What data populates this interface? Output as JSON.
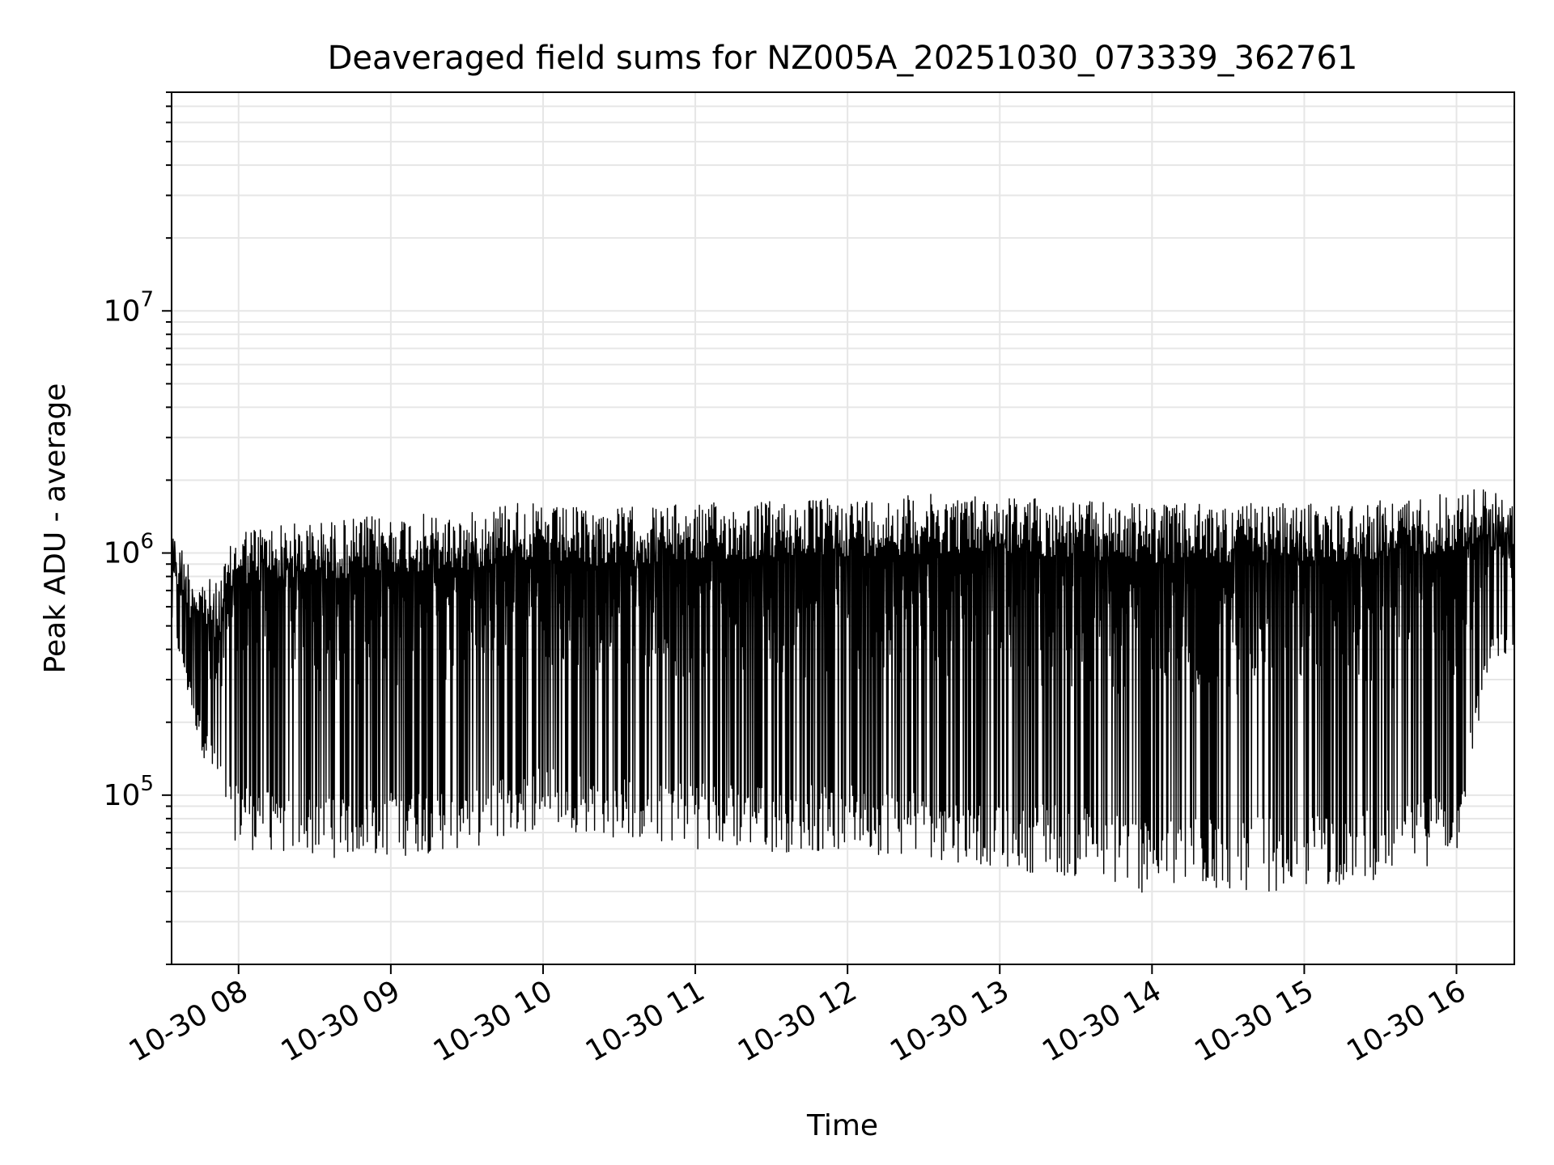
{
  "chart_data": {
    "type": "line",
    "title": "Deaveraged field sums for NZ005A_20251030_073339_362761",
    "xlabel": "Time",
    "ylabel": "Peak ADU - average",
    "yscale": "log",
    "xlim_hours": [
      7.56,
      16.38
    ],
    "ylim": [
      20000,
      80000000
    ],
    "grid": true,
    "line_color": "#000000",
    "x_ticks": [
      {
        "hour": 8,
        "label": "10-30 08"
      },
      {
        "hour": 9,
        "label": "10-30 09"
      },
      {
        "hour": 10,
        "label": "10-30 10"
      },
      {
        "hour": 11,
        "label": "10-30 11"
      },
      {
        "hour": 12,
        "label": "10-30 12"
      },
      {
        "hour": 13,
        "label": "10-30 13"
      },
      {
        "hour": 14,
        "label": "10-30 14"
      },
      {
        "hour": 15,
        "label": "10-30 15"
      },
      {
        "hour": 16,
        "label": "10-30 16"
      }
    ],
    "y_ticks": [
      {
        "exp": 5,
        "base": "10",
        "power": "5"
      },
      {
        "exp": 6,
        "base": "10",
        "power": "6"
      },
      {
        "exp": 7,
        "base": "10",
        "power": "7"
      }
    ],
    "series": [
      {
        "name": "deaveraged field sums",
        "envelope_hours": [
          7.56,
          7.7,
          7.85,
          8.0,
          8.5,
          9.0,
          9.5,
          9.8,
          10.0,
          10.5,
          11.0,
          11.5,
          12.0,
          12.5,
          13.0,
          13.5,
          14.0,
          14.5,
          15.0,
          15.5,
          16.0,
          16.2,
          16.38
        ],
        "envelope_high": [
          1300000,
          900000,
          750000,
          1300000,
          1350000,
          1450000,
          1450000,
          1700000,
          1550000,
          1550000,
          1600000,
          1650000,
          1700000,
          1750000,
          1750000,
          1650000,
          1600000,
          1600000,
          1600000,
          1650000,
          1800000,
          1900000,
          1600000
        ],
        "envelope_low": [
          500000,
          200000,
          100000,
          60000,
          55000,
          55000,
          60000,
          65000,
          75000,
          65000,
          60000,
          58000,
          58000,
          55000,
          50000,
          45000,
          38000,
          40000,
          40000,
          45000,
          55000,
          300000,
          400000
        ]
      }
    ]
  }
}
